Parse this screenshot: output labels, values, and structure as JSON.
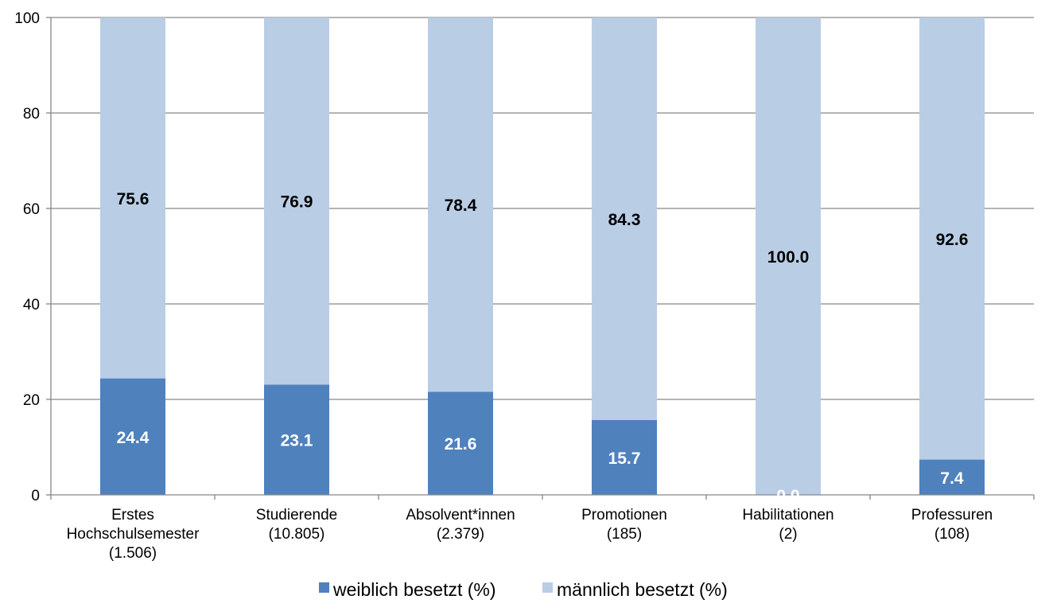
{
  "chart_data": {
    "type": "bar",
    "stacked": true,
    "categories": [
      [
        "Erstes",
        "Hochschulsemester",
        "(1.506)"
      ],
      [
        "Studierende",
        "(10.805)"
      ],
      [
        "Absolvent*innen",
        "(2.379)"
      ],
      [
        "Promotionen",
        "(185)"
      ],
      [
        "Habilitationen",
        "(2)"
      ],
      [
        "Professuren",
        "(108)"
      ]
    ],
    "series": [
      {
        "name": "weiblich besetzt (%)",
        "color": "#4f81bd",
        "label_color": "#ffffff",
        "values": [
          24.4,
          23.1,
          21.6,
          15.7,
          0.0,
          7.4
        ]
      },
      {
        "name": "männlich besetzt (%)",
        "color": "#b9cde5",
        "label_color": "#000000",
        "values": [
          75.6,
          76.9,
          78.4,
          84.3,
          100.0,
          92.6
        ]
      }
    ],
    "ylim": [
      0,
      100
    ],
    "yticks": [
      0,
      20,
      40,
      60,
      80,
      100
    ],
    "grid": true,
    "legend": "bottom",
    "title": "",
    "xlabel": "",
    "ylabel": ""
  }
}
